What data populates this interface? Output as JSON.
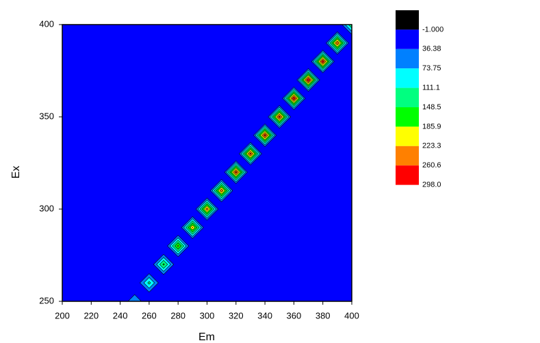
{
  "chart_data": {
    "type": "contour",
    "x_label": "Em",
    "y_label": "Ex",
    "x": [
      250,
      260,
      270,
      280,
      290,
      300,
      310,
      320,
      330,
      340,
      350,
      360,
      370,
      380,
      390,
      400
    ],
    "y": [
      250,
      260,
      270,
      280,
      290,
      300,
      310,
      320,
      330,
      340,
      350,
      360,
      370,
      380,
      390,
      400
    ],
    "values": [
      75,
      125,
      160,
      200,
      230,
      250,
      255,
      280,
      275,
      285,
      280,
      295,
      297,
      290,
      265,
      150
    ],
    "levels": [
      {
        "value": -1,
        "label": "-1.000"
      },
      36.38,
      73.75,
      111.1,
      148.5,
      185.9,
      223.3,
      260.6,
      {
        "value": 298,
        "label": "298.0"
      }
    ],
    "colors": [
      "#000000",
      "#0000ff",
      "#0080ff",
      "#00ffff",
      "#00ff80",
      "#00ff00",
      "#ffff00",
      "#ff8000",
      "#ff0000"
    ],
    "xlim": [
      200,
      400
    ],
    "xticks": [
      200,
      220,
      240,
      260,
      280,
      300,
      320,
      340,
      360,
      380,
      400
    ],
    "ylim": [
      250,
      400
    ],
    "yticks": [
      250,
      300,
      350,
      400
    ]
  }
}
